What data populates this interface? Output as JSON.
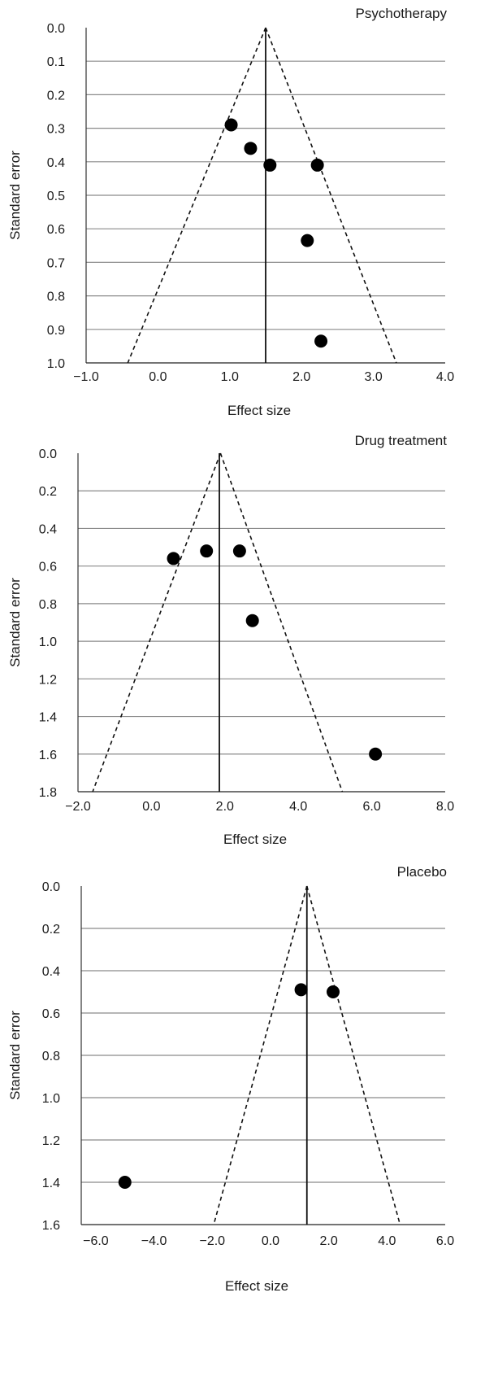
{
  "chart_data": [
    {
      "type": "scatter",
      "title": "Psychotherapy",
      "xlabel": "Effect size",
      "ylabel": "Standard error",
      "xlim": [
        -1.0,
        4.0
      ],
      "ylim": [
        0.0,
        1.0
      ],
      "y_reversed": true,
      "grid": "horizontal",
      "xticks": [
        "−1.0",
        "0.0",
        "1.0",
        "2.0",
        "3.0",
        "4.0"
      ],
      "yticks": [
        "0.0",
        "0.1",
        "0.2",
        "0.3",
        "0.4",
        "0.5",
        "0.6",
        "0.7",
        "0.8",
        "0.9",
        "1.0"
      ],
      "pooled_effect": 1.5,
      "funnel": {
        "apex": [
          1.5,
          0.0
        ],
        "base_left": [
          -0.42,
          1.0
        ],
        "base_right": [
          3.32,
          1.0
        ]
      },
      "points": [
        {
          "x": 1.02,
          "y": 0.29
        },
        {
          "x": 1.29,
          "y": 0.36
        },
        {
          "x": 1.56,
          "y": 0.41
        },
        {
          "x": 2.22,
          "y": 0.41
        },
        {
          "x": 2.08,
          "y": 0.635
        },
        {
          "x": 2.27,
          "y": 0.935
        }
      ]
    },
    {
      "type": "scatter",
      "title": "Drug treatment",
      "xlabel": "Effect size",
      "ylabel": "Standard error",
      "xlim": [
        -2.0,
        8.0
      ],
      "ylim": [
        0.0,
        1.8
      ],
      "y_reversed": true,
      "grid": "horizontal",
      "xticks": [
        "−2.0",
        "0.0",
        "2.0",
        "4.0",
        "6.0",
        "8.0"
      ],
      "yticks": [
        "0.0",
        "0.2",
        "0.4",
        "0.6",
        "0.8",
        "1.0",
        "1.2",
        "1.4",
        "1.6",
        "1.8"
      ],
      "pooled_effect": 1.85,
      "funnel": {
        "apex": [
          1.88,
          0.0
        ],
        "base_left": [
          -1.6,
          1.8
        ],
        "base_right": [
          5.2,
          1.8
        ]
      },
      "points": [
        {
          "x": 0.6,
          "y": 0.56
        },
        {
          "x": 1.5,
          "y": 0.52
        },
        {
          "x": 2.4,
          "y": 0.52
        },
        {
          "x": 2.75,
          "y": 0.89
        },
        {
          "x": 6.1,
          "y": 1.6
        }
      ]
    },
    {
      "type": "scatter",
      "title": "Placebo",
      "xlabel": "Effect size",
      "ylabel": "Standard error",
      "xlim": [
        -6.5,
        6.0
      ],
      "ylim": [
        0.0,
        1.6
      ],
      "y_reversed": true,
      "grid": "horizontal",
      "xticks": [
        "−6.0",
        "−4.0",
        "−2.0",
        "0.0",
        "2.0",
        "4.0",
        "6.0"
      ],
      "xtick_values": [
        -6,
        -4,
        -2,
        0,
        2,
        4,
        6
      ],
      "yticks": [
        "0.0",
        "0.2",
        "0.4",
        "0.6",
        "0.8",
        "1.0",
        "1.2",
        "1.4",
        "1.6"
      ],
      "pooled_effect": 1.25,
      "funnel": {
        "apex": [
          1.25,
          0.0
        ],
        "base_left": [
          -1.95,
          1.6
        ],
        "base_right": [
          4.45,
          1.6
        ]
      },
      "points": [
        {
          "x": 1.05,
          "y": 0.49
        },
        {
          "x": 2.15,
          "y": 0.5
        },
        {
          "x": -5.0,
          "y": 1.4
        }
      ]
    }
  ]
}
